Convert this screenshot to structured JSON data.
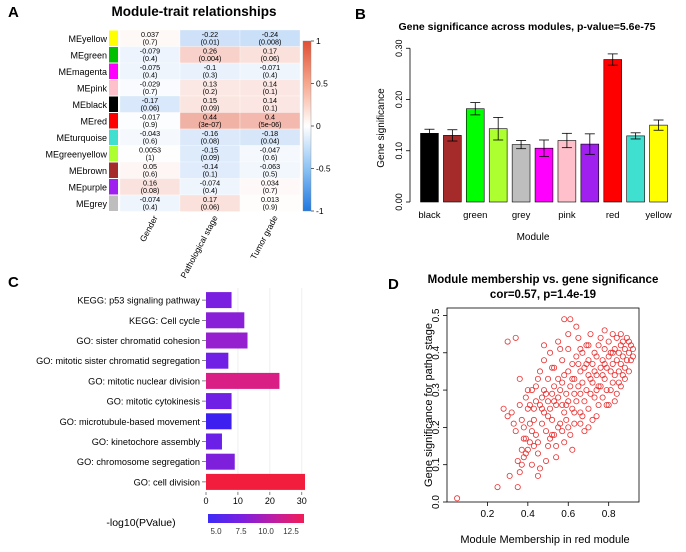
{
  "panels": {
    "a": {
      "letter": "A"
    },
    "b": {
      "letter": "B"
    },
    "c": {
      "letter": "C"
    },
    "d": {
      "letter": "D"
    }
  },
  "chart_data": [
    {
      "type": "heatmap",
      "panel": "A",
      "title": "Module-trait relationships",
      "rows": [
        "MEyellow",
        "MEgreen",
        "MEmagenta",
        "MEpink",
        "MEblack",
        "MEred",
        "MEturquoise",
        "MEgreenyellow",
        "MEbrown",
        "MEpurple",
        "MEgrey"
      ],
      "row_colors": [
        "#ffff00",
        "#00c000",
        "#ff00ff",
        "#ffc0cb",
        "#000000",
        "#ff0000",
        "#40e0d0",
        "#adff2f",
        "#a52a2a",
        "#a020f0",
        "#bebebe"
      ],
      "columns": [
        "Gender",
        "Pathological stage",
        "Tumor grade"
      ],
      "values": [
        [
          0.037,
          -0.22,
          -0.24
        ],
        [
          -0.079,
          0.26,
          0.17
        ],
        [
          -0.075,
          -0.1,
          -0.071
        ],
        [
          -0.029,
          0.13,
          0.14
        ],
        [
          -0.17,
          0.15,
          0.14
        ],
        [
          -0.017,
          0.44,
          0.4
        ],
        [
          -0.043,
          -0.16,
          -0.18
        ],
        [
          0.0053,
          -0.15,
          -0.047
        ],
        [
          0.05,
          -0.14,
          -0.063
        ],
        [
          0.16,
          -0.074,
          0.034
        ],
        [
          -0.074,
          0.17,
          0.013
        ]
      ],
      "value_labels": [
        [
          "0.037",
          "-0.22",
          "-0.24"
        ],
        [
          "-0.079",
          "0.26",
          "0.17"
        ],
        [
          "-0.075",
          "-0.1",
          "-0.071"
        ],
        [
          "-0.029",
          "0.13",
          "0.14"
        ],
        [
          "-0.17",
          "0.15",
          "0.14"
        ],
        [
          "-0.017",
          "0.44",
          "0.4"
        ],
        [
          "-0.043",
          "-0.16",
          "-0.18"
        ],
        [
          "0.0053",
          "-0.15",
          "-0.047"
        ],
        [
          "0.05",
          "-0.14",
          "-0.063"
        ],
        [
          "0.16",
          "-0.074",
          "0.034"
        ],
        [
          "-0.074",
          "0.17",
          "0.013"
        ]
      ],
      "p_labels": [
        [
          "(0.7)",
          "(0.01)",
          "(0.008)"
        ],
        [
          "(0.4)",
          "(0.004)",
          "(0.06)"
        ],
        [
          "(0.4)",
          "(0.3)",
          "(0.4)"
        ],
        [
          "(0.7)",
          "(0.2)",
          "(0.1)"
        ],
        [
          "(0.06)",
          "(0.09)",
          "(0.1)"
        ],
        [
          "(0.9)",
          "(3e-07)",
          "(5e-06)"
        ],
        [
          "(0.6)",
          "(0.08)",
          "(0.04)"
        ],
        [
          "(1)",
          "(0.09)",
          "(0.6)"
        ],
        [
          "(0.6)",
          "(0.1)",
          "(0.5)"
        ],
        [
          "(0.08)",
          "(0.4)",
          "(0.7)"
        ],
        [
          "(0.4)",
          "(0.06)",
          "(0.9)"
        ]
      ],
      "colorbar_range": [
        -1,
        1
      ],
      "colorbar_ticks": [
        "1",
        "0.5",
        "0",
        "-0.5",
        "-1"
      ],
      "colorbar_colors": {
        "low": "#2e7fe0",
        "mid": "#ffffff",
        "high": "#e8553a"
      }
    },
    {
      "type": "bar",
      "panel": "B",
      "title": "Gene significance across modules, p-value=5.6e-75",
      "xlabel": "Module",
      "ylabel": "Gene significance",
      "categories": [
        "black",
        "brown",
        "green",
        "greenyellow",
        "grey",
        "magenta",
        "pink",
        "purple",
        "red",
        "turquoise",
        "yellow"
      ],
      "tick_labels_shown": [
        "black",
        "green",
        "grey",
        "pink",
        "red",
        "yellow"
      ],
      "bar_colors": [
        "#000000",
        "#a52a2a",
        "#00ff00",
        "#adff2f",
        "#bebebe",
        "#ff00ff",
        "#ffc0cb",
        "#a020f0",
        "#ff0000",
        "#40e0d0",
        "#ffff00"
      ],
      "values": [
        0.134,
        0.13,
        0.182,
        0.143,
        0.112,
        0.105,
        0.12,
        0.113,
        0.278,
        0.129,
        0.15
      ],
      "errors": [
        0.008,
        0.011,
        0.012,
        0.022,
        0.008,
        0.016,
        0.014,
        0.02,
        0.011,
        0.006,
        0.01
      ],
      "ylim": [
        0,
        0.32
      ],
      "yticks": [
        "0.00",
        "0.10",
        "0.20",
        "0.30"
      ]
    },
    {
      "type": "bar",
      "panel": "C",
      "orientation": "horizontal",
      "categories": [
        "KEGG: p53 signaling pathway",
        "KEGG: Cell cycle",
        "GO: sister chromatid cohesion",
        "GO: mitotic sister chromatid segregation",
        "GO: mitotic nuclear division",
        "GO: mitotic cytokinesis",
        "GO: microtubule-based movement",
        "GO: kinetochore assembly",
        "GO: chromosome segregation",
        "GO: cell division"
      ],
      "values": [
        8,
        12,
        13,
        7,
        23,
        8,
        8,
        5,
        9,
        31
      ],
      "pvalue_colors": [
        "#7a1fe0",
        "#8a1fd8",
        "#961fcf",
        "#6f20e4",
        "#d91e86",
        "#6f20e4",
        "#3d1ff0",
        "#6a20e6",
        "#7e1fdc",
        "#f21c3c"
      ],
      "xlim": [
        0,
        31
      ],
      "xticks": [
        "0",
        "10",
        "20",
        "30"
      ],
      "legend_label": "-log10(PValue)",
      "legend_ticks": [
        "5.0",
        "7.5",
        "10.0",
        "12.5"
      ],
      "legend_range": [
        4.2,
        13.8
      ]
    },
    {
      "type": "scatter",
      "panel": "D",
      "title": "Module membership vs. gene significance",
      "subtitle": "cor=0.57, p=1.4e-19",
      "xlabel": "Module Membership in red module",
      "ylabel": "Gene significance for patho stage",
      "xlim": [
        0.0,
        0.95
      ],
      "ylim": [
        0.0,
        0.52
      ],
      "xticks": [
        "0.2",
        "0.4",
        "0.6",
        "0.8"
      ],
      "yticks": [
        "0.0",
        "0.1",
        "0.2",
        "0.3",
        "0.4",
        "0.5"
      ],
      "point_color": "#e83030",
      "points": [
        [
          0.05,
          0.01
        ],
        [
          0.25,
          0.04
        ],
        [
          0.28,
          0.25
        ],
        [
          0.3,
          0.23
        ],
        [
          0.3,
          0.43
        ],
        [
          0.31,
          0.07
        ],
        [
          0.32,
          0.24
        ],
        [
          0.33,
          0.21
        ],
        [
          0.34,
          0.44
        ],
        [
          0.34,
          0.19
        ],
        [
          0.35,
          0.11
        ],
        [
          0.35,
          0.04
        ],
        [
          0.36,
          0.26
        ],
        [
          0.36,
          0.08
        ],
        [
          0.37,
          0.1
        ],
        [
          0.37,
          0.22
        ],
        [
          0.38,
          0.12
        ],
        [
          0.38,
          0.2
        ],
        [
          0.38,
          0.17
        ],
        [
          0.39,
          0.28
        ],
        [
          0.39,
          0.13
        ],
        [
          0.4,
          0.25
        ],
        [
          0.4,
          0.14
        ],
        [
          0.41,
          0.21
        ],
        [
          0.41,
          0.16
        ],
        [
          0.42,
          0.3
        ],
        [
          0.42,
          0.19
        ],
        [
          0.42,
          0.1
        ],
        [
          0.43,
          0.22
        ],
        [
          0.43,
          0.25
        ],
        [
          0.44,
          0.27
        ],
        [
          0.44,
          0.18
        ],
        [
          0.45,
          0.33
        ],
        [
          0.45,
          0.16
        ],
        [
          0.45,
          0.13
        ],
        [
          0.46,
          0.26
        ],
        [
          0.46,
          0.35
        ],
        [
          0.47,
          0.21
        ],
        [
          0.47,
          0.28
        ],
        [
          0.48,
          0.24
        ],
        [
          0.48,
          0.38
        ],
        [
          0.48,
          0.3
        ],
        [
          0.49,
          0.11
        ],
        [
          0.49,
          0.19
        ],
        [
          0.5,
          0.23
        ],
        [
          0.5,
          0.27
        ],
        [
          0.5,
          0.33
        ],
        [
          0.51,
          0.17
        ],
        [
          0.51,
          0.25
        ],
        [
          0.51,
          0.4
        ],
        [
          0.52,
          0.22
        ],
        [
          0.52,
          0.29
        ],
        [
          0.53,
          0.31
        ],
        [
          0.53,
          0.18
        ],
        [
          0.53,
          0.36
        ],
        [
          0.54,
          0.26
        ],
        [
          0.54,
          0.15
        ],
        [
          0.55,
          0.28
        ],
        [
          0.55,
          0.33
        ],
        [
          0.55,
          0.43
        ],
        [
          0.56,
          0.21
        ],
        [
          0.56,
          0.3
        ],
        [
          0.57,
          0.26
        ],
        [
          0.57,
          0.38
        ],
        [
          0.57,
          0.19
        ],
        [
          0.58,
          0.24
        ],
        [
          0.58,
          0.34
        ],
        [
          0.58,
          0.49
        ],
        [
          0.59,
          0.29
        ],
        [
          0.59,
          0.22
        ],
        [
          0.6,
          0.35
        ],
        [
          0.6,
          0.27
        ],
        [
          0.6,
          0.41
        ],
        [
          0.61,
          0.31
        ],
        [
          0.61,
          0.18
        ],
        [
          0.61,
          0.49
        ],
        [
          0.62,
          0.25
        ],
        [
          0.62,
          0.37
        ],
        [
          0.63,
          0.29
        ],
        [
          0.63,
          0.33
        ],
        [
          0.63,
          0.21
        ],
        [
          0.64,
          0.39
        ],
        [
          0.64,
          0.27
        ],
        [
          0.65,
          0.31
        ],
        [
          0.65,
          0.44
        ],
        [
          0.66,
          0.24
        ],
        [
          0.66,
          0.35
        ],
        [
          0.66,
          0.29
        ],
        [
          0.67,
          0.4
        ],
        [
          0.67,
          0.32
        ],
        [
          0.68,
          0.27
        ],
        [
          0.68,
          0.36
        ],
        [
          0.68,
          0.19
        ],
        [
          0.69,
          0.42
        ],
        [
          0.69,
          0.3
        ],
        [
          0.7,
          0.34
        ],
        [
          0.7,
          0.25
        ],
        [
          0.7,
          0.38
        ],
        [
          0.71,
          0.29
        ],
        [
          0.71,
          0.45
        ],
        [
          0.72,
          0.32
        ],
        [
          0.72,
          0.37
        ],
        [
          0.72,
          0.22
        ],
        [
          0.73,
          0.28
        ],
        [
          0.73,
          0.4
        ],
        [
          0.74,
          0.34
        ],
        [
          0.74,
          0.3
        ],
        [
          0.75,
          0.42
        ],
        [
          0.75,
          0.26
        ],
        [
          0.76,
          0.36
        ],
        [
          0.76,
          0.44
        ],
        [
          0.76,
          0.31
        ],
        [
          0.77,
          0.38
        ],
        [
          0.77,
          0.28
        ],
        [
          0.78,
          0.41
        ],
        [
          0.78,
          0.33
        ],
        [
          0.78,
          0.46
        ],
        [
          0.79,
          0.36
        ],
        [
          0.79,
          0.3
        ],
        [
          0.8,
          0.39
        ],
        [
          0.8,
          0.43
        ],
        [
          0.8,
          0.26
        ],
        [
          0.81,
          0.35
        ],
        [
          0.81,
          0.4
        ],
        [
          0.82,
          0.32
        ],
        [
          0.82,
          0.45
        ],
        [
          0.82,
          0.37
        ],
        [
          0.83,
          0.41
        ],
        [
          0.83,
          0.34
        ],
        [
          0.84,
          0.38
        ],
        [
          0.84,
          0.44
        ],
        [
          0.84,
          0.29
        ],
        [
          0.85,
          0.4
        ],
        [
          0.85,
          0.35
        ],
        [
          0.86,
          0.42
        ],
        [
          0.86,
          0.37
        ],
        [
          0.86,
          0.31
        ],
        [
          0.87,
          0.39
        ],
        [
          0.87,
          0.43
        ],
        [
          0.88,
          0.36
        ],
        [
          0.88,
          0.41
        ],
        [
          0.88,
          0.33
        ],
        [
          0.89,
          0.38
        ],
        [
          0.89,
          0.44
        ],
        [
          0.9,
          0.4
        ],
        [
          0.9,
          0.35
        ],
        [
          0.91,
          0.42
        ],
        [
          0.91,
          0.38
        ],
        [
          0.92,
          0.39
        ],
        [
          0.92,
          0.41
        ],
        [
          0.46,
          0.09
        ],
        [
          0.5,
          0.15
        ],
        [
          0.54,
          0.12
        ],
        [
          0.58,
          0.16
        ],
        [
          0.62,
          0.14
        ],
        [
          0.66,
          0.21
        ],
        [
          0.7,
          0.2
        ],
        [
          0.74,
          0.23
        ],
        [
          0.44,
          0.31
        ],
        [
          0.52,
          0.36
        ],
        [
          0.56,
          0.41
        ],
        [
          0.6,
          0.45
        ],
        [
          0.64,
          0.47
        ],
        [
          0.48,
          0.42
        ],
        [
          0.4,
          0.3
        ],
        [
          0.36,
          0.33
        ],
        [
          0.45,
          0.07
        ],
        [
          0.43,
          0.15
        ],
        [
          0.39,
          0.17
        ],
        [
          0.47,
          0.25
        ],
        [
          0.55,
          0.2
        ],
        [
          0.59,
          0.26
        ],
        [
          0.63,
          0.24
        ],
        [
          0.67,
          0.23
        ],
        [
          0.71,
          0.33
        ],
        [
          0.75,
          0.31
        ],
        [
          0.79,
          0.26
        ],
        [
          0.83,
          0.27
        ],
        [
          0.87,
          0.34
        ],
        [
          0.65,
          0.37
        ],
        [
          0.69,
          0.37
        ],
        [
          0.73,
          0.35
        ],
        [
          0.77,
          0.34
        ],
        [
          0.81,
          0.3
        ],
        [
          0.85,
          0.32
        ],
        [
          0.57,
          0.32
        ],
        [
          0.53,
          0.27
        ],
        [
          0.49,
          0.29
        ],
        [
          0.41,
          0.26
        ],
        [
          0.37,
          0.14
        ],
        [
          0.62,
          0.33
        ],
        [
          0.66,
          0.41
        ],
        [
          0.7,
          0.42
        ],
        [
          0.74,
          0.39
        ],
        [
          0.78,
          0.37
        ],
        [
          0.82,
          0.4
        ],
        [
          0.86,
          0.45
        ],
        [
          0.9,
          0.43
        ],
        [
          0.6,
          0.2
        ],
        [
          0.52,
          0.18
        ]
      ]
    }
  ]
}
